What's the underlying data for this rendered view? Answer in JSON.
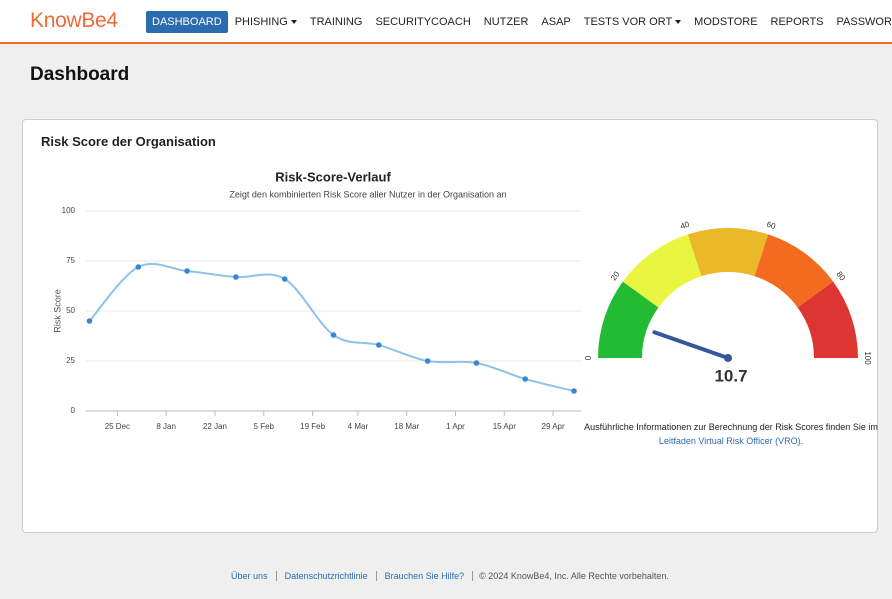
{
  "nav": {
    "logo": "KnowBe4",
    "items": [
      {
        "label": "DASHBOARD",
        "active": true
      },
      {
        "label": "PHISHING",
        "dropdown": true
      },
      {
        "label": "TRAINING"
      },
      {
        "label": "SECURITYCOACH"
      },
      {
        "label": "NUTZER"
      },
      {
        "label": "ASAP"
      },
      {
        "label": "TESTS VOR ORT",
        "dropdown": true
      },
      {
        "label": "MODSTORE"
      },
      {
        "label": "REPORTS"
      },
      {
        "label": "PASSWORDIQ"
      }
    ]
  },
  "page_title": "Dashboard",
  "card_title": "Risk Score der Organisation",
  "chart_data": [
    {
      "type": "line",
      "title": "Risk-Score-Verlauf",
      "subtitle": "Zeigt den kombinierten Risk Score aller Nutzer in der Organisation an",
      "y_label": "Risk Score",
      "x": [
        "17 Dec",
        "31 Dec",
        "14 Jan",
        "28 Jan",
        "11 Feb",
        "25 Feb",
        "10 Mar",
        "24 Mar",
        "7 Apr",
        "21 Apr",
        "5 May"
      ],
      "values": [
        45,
        72,
        70,
        67,
        66,
        38,
        33,
        25,
        24,
        16,
        10
      ],
      "color": "#8ec3e8",
      "marker_color": "#3a86d6",
      "xlim": [
        "16 Dec",
        "7 May"
      ],
      "xticks": [
        "25 Dec",
        "8 Jan",
        "22 Jan",
        "5 Feb",
        "19 Feb",
        "4 Mar",
        "18 Mar",
        "1 Apr",
        "15 Apr",
        "29 Apr"
      ],
      "ylim": [
        0,
        100
      ],
      "yticks": [
        0,
        25,
        50,
        75,
        100
      ],
      "grid": true
    },
    {
      "type": "gauge",
      "value": 10.7,
      "ylim": [
        0,
        100
      ],
      "yticks": [
        0,
        20,
        40,
        60,
        80,
        100
      ],
      "band_colors": [
        "#22bb33",
        "#eaf542",
        "#ebb82a",
        "#f46a1f",
        "#dc3532"
      ],
      "needle_color": "#36589a"
    }
  ],
  "info": {
    "text": "Ausführliche Informationen zur Berechnung der Risk Scores finden Sie im ",
    "link": "Leitfaden Virtual Risk Officer (VRO)",
    "end": "."
  },
  "footer": {
    "links": [
      "Über uns",
      "Datenschutzrichtlinie",
      "Brauchen Sie Hilfe?"
    ],
    "copyright": "© 2024 KnowBe4, Inc. Alle Rechte vorbehalten."
  }
}
